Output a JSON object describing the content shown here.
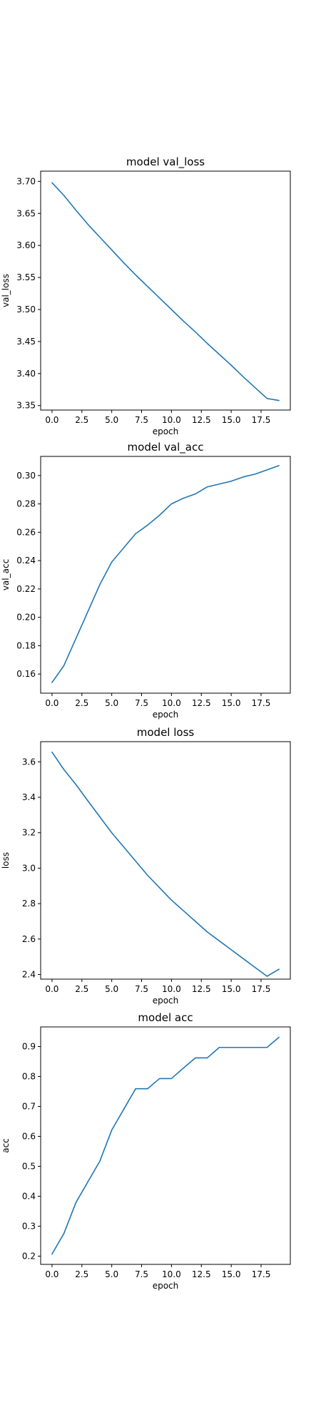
{
  "chart_data": [
    {
      "type": "line",
      "title": "model val_loss",
      "xlabel": "epoch",
      "ylabel": "val_loss",
      "xlim": [
        -0.95,
        19.95
      ],
      "ylim": [
        3.343,
        3.716
      ],
      "xticks": [
        0.0,
        2.5,
        5.0,
        7.5,
        10.0,
        12.5,
        15.0,
        17.5
      ],
      "xtick_labels": [
        "0.0",
        "2.5",
        "5.0",
        "7.5",
        "10.0",
        "12.5",
        "15.0",
        "17.5"
      ],
      "yticks": [
        3.35,
        3.4,
        3.45,
        3.5,
        3.55,
        3.6,
        3.65,
        3.7
      ],
      "ytick_labels": [
        "3.35",
        "3.40",
        "3.45",
        "3.50",
        "3.55",
        "3.60",
        "3.65",
        "3.70"
      ],
      "grid": false,
      "color": "#1f77b4",
      "x": [
        0,
        1,
        2,
        3,
        4,
        5,
        6,
        7,
        8,
        9,
        10,
        11,
        12,
        13,
        14,
        15,
        16,
        17,
        18,
        19
      ],
      "y": [
        3.698,
        3.678,
        3.655,
        3.633,
        3.613,
        3.593,
        3.573,
        3.554,
        3.536,
        3.518,
        3.5,
        3.482,
        3.465,
        3.447,
        3.43,
        3.413,
        3.395,
        3.378,
        3.361,
        3.358
      ]
    },
    {
      "type": "line",
      "title": "model val_acc",
      "xlabel": "epoch",
      "ylabel": "val_acc",
      "xlim": [
        -0.95,
        19.95
      ],
      "ylim": [
        0.1465,
        0.3135
      ],
      "xticks": [
        0.0,
        2.5,
        5.0,
        7.5,
        10.0,
        12.5,
        15.0,
        17.5
      ],
      "xtick_labels": [
        "0.0",
        "2.5",
        "5.0",
        "7.5",
        "10.0",
        "12.5",
        "15.0",
        "17.5"
      ],
      "yticks": [
        0.16,
        0.18,
        0.2,
        0.22,
        0.24,
        0.26,
        0.28,
        0.3
      ],
      "ytick_labels": [
        "0.16",
        "0.18",
        "0.20",
        "0.22",
        "0.24",
        "0.26",
        "0.28",
        "0.30"
      ],
      "grid": false,
      "color": "#1f77b4",
      "x": [
        0,
        1,
        2,
        3,
        4,
        5,
        6,
        7,
        8,
        9,
        10,
        11,
        12,
        13,
        14,
        15,
        16,
        17,
        18,
        19
      ],
      "y": [
        0.154,
        0.166,
        0.185,
        0.204,
        0.223,
        0.239,
        0.249,
        0.259,
        0.265,
        0.272,
        0.28,
        0.284,
        0.287,
        0.292,
        0.294,
        0.296,
        0.299,
        0.301,
        0.304,
        0.307
      ]
    },
    {
      "type": "line",
      "title": "model loss",
      "xlabel": "epoch",
      "ylabel": "loss",
      "xlim": [
        -0.95,
        19.95
      ],
      "ylim": [
        2.374,
        3.714
      ],
      "xticks": [
        0.0,
        2.5,
        5.0,
        7.5,
        10.0,
        12.5,
        15.0,
        17.5
      ],
      "xtick_labels": [
        "0.0",
        "2.5",
        "5.0",
        "7.5",
        "10.0",
        "12.5",
        "15.0",
        "17.5"
      ],
      "yticks": [
        2.4,
        2.6,
        2.8,
        3.0,
        3.2,
        3.4,
        3.6
      ],
      "ytick_labels": [
        "2.4",
        "2.6",
        "2.8",
        "3.0",
        "3.2",
        "3.4",
        "3.6"
      ],
      "grid": false,
      "color": "#1f77b4",
      "x": [
        0,
        1,
        2,
        3,
        4,
        5,
        6,
        7,
        8,
        9,
        10,
        11,
        12,
        13,
        14,
        15,
        16,
        17,
        18,
        19
      ],
      "y": [
        3.655,
        3.556,
        3.472,
        3.38,
        3.29,
        3.2,
        3.12,
        3.04,
        2.96,
        2.89,
        2.82,
        2.76,
        2.7,
        2.64,
        2.59,
        2.54,
        2.49,
        2.44,
        2.39,
        2.43
      ]
    },
    {
      "type": "line",
      "title": "model acc",
      "xlabel": "epoch",
      "ylabel": "acc",
      "xlim": [
        -0.95,
        19.95
      ],
      "ylim": [
        0.1725,
        0.9655
      ],
      "xticks": [
        0.0,
        2.5,
        5.0,
        7.5,
        10.0,
        12.5,
        15.0,
        17.5
      ],
      "xtick_labels": [
        "0.0",
        "2.5",
        "5.0",
        "7.5",
        "10.0",
        "12.5",
        "15.0",
        "17.5"
      ],
      "yticks": [
        0.2,
        0.3,
        0.4,
        0.5,
        0.6,
        0.7,
        0.8,
        0.9
      ],
      "ytick_labels": [
        "0.2",
        "0.3",
        "0.4",
        "0.5",
        "0.6",
        "0.7",
        "0.8",
        "0.9"
      ],
      "grid": false,
      "color": "#1f77b4",
      "x": [
        0,
        1,
        2,
        3,
        4,
        5,
        6,
        7,
        8,
        9,
        10,
        11,
        12,
        13,
        14,
        15,
        16,
        17,
        18,
        19
      ],
      "y": [
        0.207,
        0.276,
        0.379,
        0.448,
        0.517,
        0.621,
        0.69,
        0.759,
        0.759,
        0.793,
        0.793,
        0.828,
        0.862,
        0.862,
        0.897,
        0.897,
        0.897,
        0.897,
        0.897,
        0.931
      ]
    }
  ]
}
